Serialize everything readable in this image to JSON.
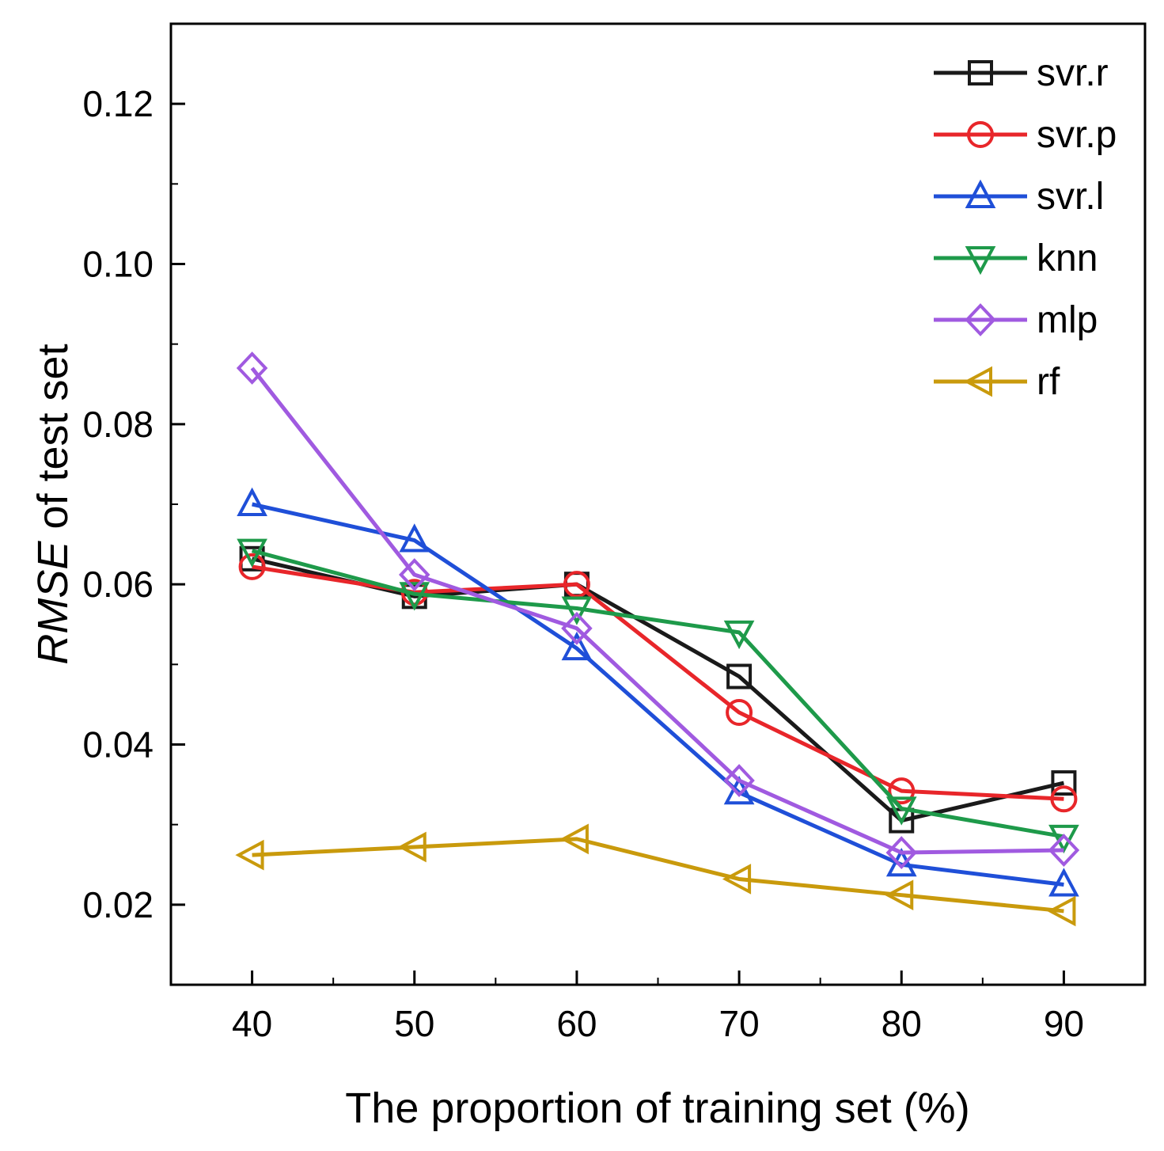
{
  "chart_data": {
    "type": "line",
    "title": "",
    "xlabel": "The proportion of training set (%)",
    "ylabel_italic": "RMSE",
    "ylabel_rest": " of test set",
    "x": [
      40,
      50,
      60,
      70,
      80,
      90
    ],
    "xlim": [
      35,
      95
    ],
    "ylim": [
      0.01,
      0.13
    ],
    "xticks": [
      40,
      50,
      60,
      70,
      80,
      90
    ],
    "xtick_labels": [
      "40",
      "50",
      "60",
      "70",
      "80",
      "90"
    ],
    "yticks": [
      0.02,
      0.04,
      0.06,
      0.08,
      0.1,
      0.12
    ],
    "ytick_labels": [
      "0.02",
      "0.04",
      "0.06",
      "0.08",
      "0.10",
      "0.12"
    ],
    "grid": false,
    "legend_position": "top-right",
    "series": [
      {
        "name": "svr.r",
        "color": "#1a1a1a",
        "marker": "square",
        "values": [
          0.0632,
          0.0585,
          0.06,
          0.0485,
          0.0305,
          0.0352
        ]
      },
      {
        "name": "svr.p",
        "color": "#e8262a",
        "marker": "circle",
        "values": [
          0.0622,
          0.059,
          0.06,
          0.044,
          0.0342,
          0.0332
        ]
      },
      {
        "name": "svr.l",
        "color": "#1f4fd8",
        "marker": "triangle-up",
        "values": [
          0.07,
          0.0655,
          0.052,
          0.034,
          0.025,
          0.0225
        ]
      },
      {
        "name": "knn",
        "color": "#1e9a4a",
        "marker": "triangle-down",
        "values": [
          0.0642,
          0.0588,
          0.057,
          0.054,
          0.032,
          0.0285
        ]
      },
      {
        "name": "mlp",
        "color": "#a05ae0",
        "marker": "diamond",
        "values": [
          0.087,
          0.0612,
          0.0545,
          0.0355,
          0.0265,
          0.0268
        ]
      },
      {
        "name": "rf",
        "color": "#c99a0c",
        "marker": "triangle-left",
        "values": [
          0.0262,
          0.0272,
          0.0282,
          0.0232,
          0.0212,
          0.0192
        ]
      }
    ]
  }
}
